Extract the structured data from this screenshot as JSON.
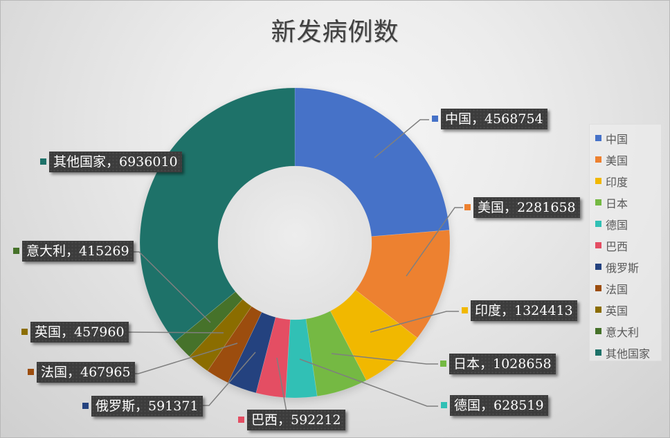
{
  "chart_data": {
    "type": "pie",
    "variant": "doughnut",
    "title": "新发病例数",
    "categories": [
      "中国",
      "美国",
      "印度",
      "日本",
      "德国",
      "巴西",
      "俄罗斯",
      "法国",
      "英国",
      "意大利",
      "其他国家"
    ],
    "values": [
      4568754,
      2281658,
      1324413,
      1028658,
      628519,
      592212,
      591371,
      467965,
      457960,
      415269,
      6936010
    ],
    "colors": [
      "#4672C8",
      "#ED8130",
      "#F1B800",
      "#75B943",
      "#31C0B5",
      "#E44E63",
      "#24427F",
      "#9C4D0E",
      "#8B6D00",
      "#46722A",
      "#1E7269"
    ],
    "data_labels": [
      "中国，4568754",
      "美国，2281658",
      "印度，1324413",
      "日本，1028658",
      "德国，628519",
      "巴西，592212",
      "俄罗斯，591371",
      "法国，467965",
      "英国，457960",
      "意大利，415269",
      "其他国家，6936010"
    ],
    "start_angle_deg": 0,
    "direction": "clockwise",
    "hole_ratio": 0.5,
    "legend_position": "right",
    "legend": [
      "中国",
      "美国",
      "印度",
      "日本",
      "德国",
      "巴西",
      "俄罗斯",
      "法国",
      "英国",
      "意大利",
      "其他国家"
    ]
  }
}
